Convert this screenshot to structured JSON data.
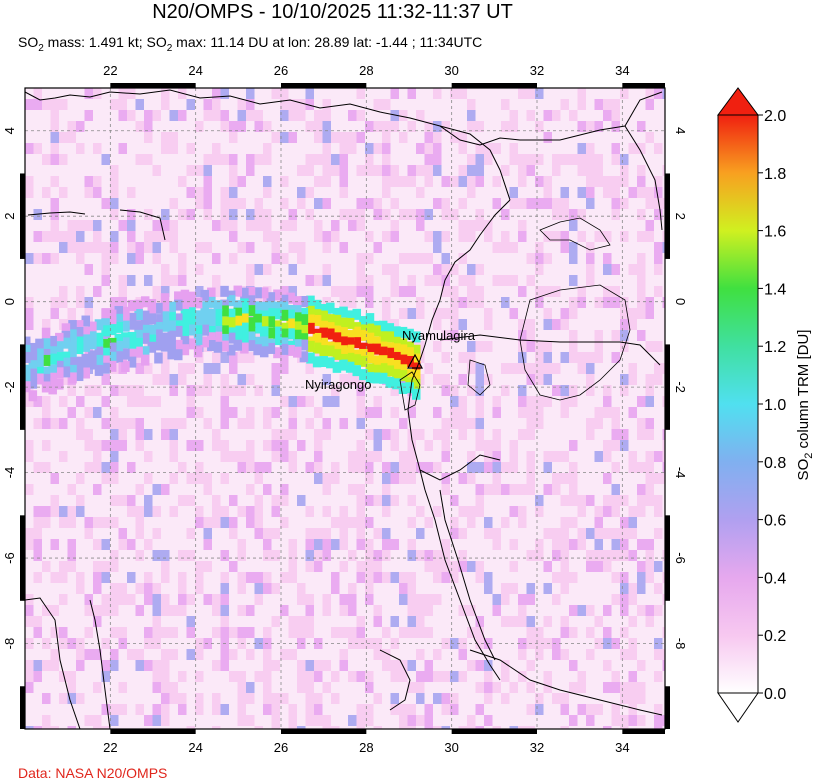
{
  "title": "N20/OMPS - 10/10/2025 11:32-11:37 UT",
  "subtitle": {
    "mass_prefix": "SO",
    "mass_sub": "2",
    "mass_text": " mass: 1.491 kt; SO",
    "max_sub": "2",
    "max_text": " max: 11.14 DU at lon: 28.89 lat: -1.44 ; 11:34UTC"
  },
  "credit": "Data: NASA N20/OMPS",
  "map": {
    "lon_ticks": [
      "22",
      "24",
      "26",
      "28",
      "30",
      "32",
      "34"
    ],
    "lat_ticks": [
      "4",
      "2",
      "0",
      "-2",
      "-4",
      "-6",
      "-8"
    ],
    "volcanoes": [
      {
        "name": "Nyamulagira",
        "lon": 29.2,
        "lat": -1.4
      },
      {
        "name": "Nyiragongo",
        "lon": 29.25,
        "lat": -1.52
      }
    ]
  },
  "colorbar": {
    "label_prefix": "SO",
    "label_sub": "2",
    "label_text": " column TRM [DU]",
    "ticks": [
      "2.0",
      "1.8",
      "1.6",
      "1.4",
      "1.2",
      "1.0",
      "0.8",
      "0.6",
      "0.4",
      "0.2",
      "0.0"
    ],
    "min": 0.0,
    "max": 2.0,
    "colors": [
      "#ffffff",
      "#f7c8f0",
      "#e6a0f0",
      "#a0a0f0",
      "#70d0f0",
      "#40f0e0",
      "#40e040",
      "#c0f020",
      "#f8e020",
      "#f89020",
      "#f02010"
    ]
  }
}
